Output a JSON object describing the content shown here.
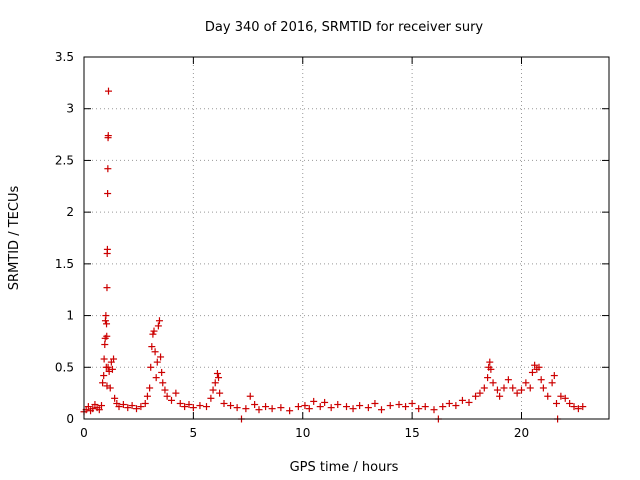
{
  "chart_data": {
    "type": "scatter",
    "title": "Day 340 of 2016, SRMTID for receiver sury",
    "xlabel": "GPS time / hours",
    "ylabel": "SRMTID / TECUs",
    "xlim": [
      0,
      24
    ],
    "ylim": [
      0,
      3.5
    ],
    "xticks": [
      0,
      5,
      10,
      15,
      20
    ],
    "yticks": [
      0,
      0.5,
      1,
      1.5,
      2,
      2.5,
      3,
      3.5
    ],
    "xtick_labels": [
      "0",
      "5",
      "10",
      "15",
      "20"
    ],
    "ytick_labels": [
      "0",
      "0.5",
      "1",
      "1.5",
      "2",
      "2.5",
      "3",
      "3.5"
    ],
    "grid": true,
    "marker": "+",
    "color": "#cc0000",
    "series": [
      {
        "name": "SRMTID",
        "points": [
          [
            0.0,
            0.07
          ],
          [
            0.1,
            0.09
          ],
          [
            0.2,
            0.12
          ],
          [
            0.3,
            0.08
          ],
          [
            0.4,
            0.1
          ],
          [
            0.5,
            0.14
          ],
          [
            0.6,
            0.11
          ],
          [
            0.7,
            0.09
          ],
          [
            0.8,
            0.13
          ],
          [
            0.85,
            0.35
          ],
          [
            0.9,
            0.42
          ],
          [
            0.92,
            0.58
          ],
          [
            0.95,
            0.72
          ],
          [
            0.97,
            0.78
          ],
          [
            0.98,
            0.95
          ],
          [
            1.0,
            1.0
          ],
          [
            1.02,
            0.5
          ],
          [
            1.03,
            0.92
          ],
          [
            1.04,
            0.8
          ],
          [
            1.05,
            1.27
          ],
          [
            1.06,
            1.6
          ],
          [
            1.07,
            1.64
          ],
          [
            1.08,
            2.18
          ],
          [
            1.09,
            2.42
          ],
          [
            1.1,
            2.72
          ],
          [
            1.11,
            2.74
          ],
          [
            1.12,
            3.17
          ],
          [
            1.1,
            0.5
          ],
          [
            1.05,
            0.32
          ],
          [
            1.15,
            0.46
          ],
          [
            1.2,
            0.3
          ],
          [
            1.25,
            0.55
          ],
          [
            1.3,
            0.48
          ],
          [
            1.35,
            0.58
          ],
          [
            1.4,
            0.2
          ],
          [
            1.5,
            0.15
          ],
          [
            1.6,
            0.12
          ],
          [
            1.8,
            0.14
          ],
          [
            2.0,
            0.11
          ],
          [
            2.2,
            0.13
          ],
          [
            2.4,
            0.1
          ],
          [
            2.6,
            0.12
          ],
          [
            2.8,
            0.15
          ],
          [
            2.9,
            0.22
          ],
          [
            3.0,
            0.3
          ],
          [
            3.05,
            0.5
          ],
          [
            3.1,
            0.7
          ],
          [
            3.15,
            0.82
          ],
          [
            3.2,
            0.85
          ],
          [
            3.25,
            0.65
          ],
          [
            3.3,
            0.4
          ],
          [
            3.35,
            0.55
          ],
          [
            3.4,
            0.9
          ],
          [
            3.45,
            0.95
          ],
          [
            3.5,
            0.6
          ],
          [
            3.55,
            0.45
          ],
          [
            3.6,
            0.35
          ],
          [
            3.7,
            0.28
          ],
          [
            3.8,
            0.22
          ],
          [
            4.0,
            0.18
          ],
          [
            4.2,
            0.25
          ],
          [
            4.4,
            0.15
          ],
          [
            4.6,
            0.12
          ],
          [
            4.8,
            0.14
          ],
          [
            5.0,
            0.11
          ],
          [
            5.3,
            0.13
          ],
          [
            5.6,
            0.12
          ],
          [
            5.8,
            0.2
          ],
          [
            5.9,
            0.28
          ],
          [
            6.0,
            0.35
          ],
          [
            6.1,
            0.44
          ],
          [
            6.15,
            0.4
          ],
          [
            6.2,
            0.25
          ],
          [
            6.4,
            0.15
          ],
          [
            6.7,
            0.13
          ],
          [
            7.0,
            0.11
          ],
          [
            7.2,
            0.0
          ],
          [
            7.4,
            0.1
          ],
          [
            7.6,
            0.22
          ],
          [
            7.8,
            0.14
          ],
          [
            8.0,
            0.09
          ],
          [
            8.3,
            0.12
          ],
          [
            8.6,
            0.1
          ],
          [
            9.0,
            0.11
          ],
          [
            9.4,
            0.08
          ],
          [
            9.8,
            0.12
          ],
          [
            10.1,
            0.13
          ],
          [
            10.3,
            0.1
          ],
          [
            10.5,
            0.17
          ],
          [
            10.8,
            0.12
          ],
          [
            11.0,
            0.16
          ],
          [
            11.3,
            0.11
          ],
          [
            11.6,
            0.14
          ],
          [
            12.0,
            0.12
          ],
          [
            12.3,
            0.1
          ],
          [
            12.6,
            0.13
          ],
          [
            13.0,
            0.11
          ],
          [
            13.3,
            0.15
          ],
          [
            13.6,
            0.09
          ],
          [
            14.0,
            0.13
          ],
          [
            14.4,
            0.14
          ],
          [
            14.7,
            0.12
          ],
          [
            15.0,
            0.15
          ],
          [
            15.3,
            0.1
          ],
          [
            15.6,
            0.12
          ],
          [
            16.0,
            0.09
          ],
          [
            16.2,
            0.0
          ],
          [
            16.4,
            0.12
          ],
          [
            16.7,
            0.15
          ],
          [
            17.0,
            0.13
          ],
          [
            17.3,
            0.18
          ],
          [
            17.6,
            0.16
          ],
          [
            17.9,
            0.22
          ],
          [
            18.1,
            0.25
          ],
          [
            18.3,
            0.3
          ],
          [
            18.45,
            0.4
          ],
          [
            18.5,
            0.5
          ],
          [
            18.55,
            0.55
          ],
          [
            18.6,
            0.48
          ],
          [
            18.7,
            0.35
          ],
          [
            18.9,
            0.28
          ],
          [
            19.0,
            0.22
          ],
          [
            19.2,
            0.3
          ],
          [
            19.4,
            0.38
          ],
          [
            19.6,
            0.3
          ],
          [
            19.8,
            0.25
          ],
          [
            20.0,
            0.28
          ],
          [
            20.2,
            0.35
          ],
          [
            20.4,
            0.3
          ],
          [
            20.5,
            0.45
          ],
          [
            20.6,
            0.52
          ],
          [
            20.7,
            0.48
          ],
          [
            20.8,
            0.5
          ],
          [
            20.9,
            0.38
          ],
          [
            21.0,
            0.3
          ],
          [
            21.2,
            0.22
          ],
          [
            21.4,
            0.35
          ],
          [
            21.5,
            0.42
          ],
          [
            21.6,
            0.15
          ],
          [
            21.65,
            0.0
          ],
          [
            21.8,
            0.22
          ],
          [
            22.0,
            0.2
          ],
          [
            22.2,
            0.15
          ],
          [
            22.4,
            0.12
          ],
          [
            22.6,
            0.1
          ],
          [
            22.8,
            0.12
          ]
        ]
      }
    ]
  }
}
